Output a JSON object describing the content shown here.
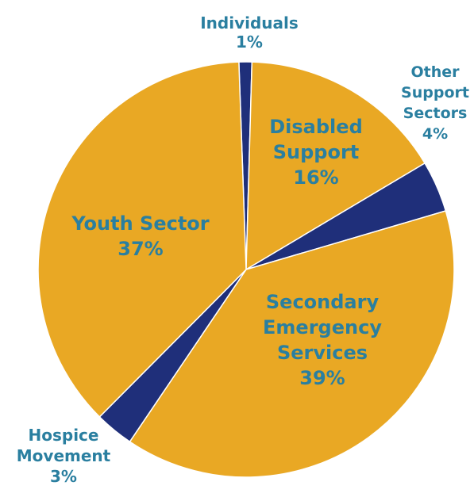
{
  "chart_data": {
    "type": "pie",
    "title": "",
    "start_angle_deg": -2,
    "direction": "clockwise",
    "slices": [
      {
        "label_lines": [
          "Individuals"
        ],
        "percent_label": "1%",
        "value": 1,
        "color": "#1f2f7a",
        "label_color": "#2a7fa0",
        "label_placement": "outside"
      },
      {
        "label_lines": [
          "Disabled",
          "Support"
        ],
        "percent_label": "16%",
        "value": 16,
        "color": "#e9a824",
        "label_color": "#2a7fa0",
        "label_placement": "inside"
      },
      {
        "label_lines": [
          "Other",
          "Support",
          "Sectors"
        ],
        "percent_label": "4%",
        "value": 4,
        "color": "#1f2f7a",
        "label_color": "#2a7fa0",
        "label_placement": "outside"
      },
      {
        "label_lines": [
          "Secondary",
          "Emergency",
          "Services"
        ],
        "percent_label": "39%",
        "value": 39,
        "color": "#e9a824",
        "label_color": "#2a7fa0",
        "label_placement": "inside"
      },
      {
        "label_lines": [
          "Hospice",
          "Movement"
        ],
        "percent_label": "3%",
        "value": 3,
        "color": "#1f2f7a",
        "label_color": "#2a7fa0",
        "label_placement": "outside"
      },
      {
        "label_lines": [
          "Youth Sector"
        ],
        "percent_label": "37%",
        "value": 37,
        "color": "#e9a824",
        "label_color": "#2a7fa0",
        "label_placement": "inside"
      }
    ],
    "legend": "none",
    "slice_border_color": "#ffffff"
  }
}
